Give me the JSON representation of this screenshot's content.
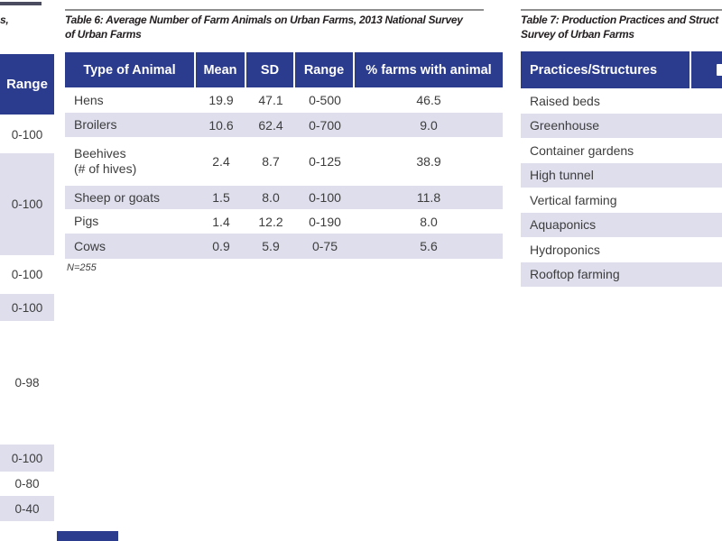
{
  "colors": {
    "header_navy": "#2b3b8e",
    "row_stripe": "#dedeed",
    "rule_gray": "#8f8f8f",
    "title_text": "#242021",
    "body_text": "#3d3d3d",
    "header_text": "#ffffff"
  },
  "left_table": {
    "title_fragment": "s,",
    "range_header": "Range",
    "range_values": [
      "0-100",
      "0-100",
      "0-100",
      "0-100",
      "0-98",
      "0-100",
      "0-80",
      "0-40"
    ]
  },
  "table6": {
    "title_line1": "Table 6: Average Number of Farm Animals on Urban Farms, 2013 National Survey",
    "title_line2": "of Urban Farms",
    "columns": [
      "Type of Animal",
      "Mean",
      "SD",
      "Range",
      "% farms with animal"
    ],
    "rows": [
      {
        "animal": "Hens",
        "animal2": "",
        "mean": "19.9",
        "sd": "47.1",
        "range": "0-500",
        "pct": "46.5"
      },
      {
        "animal": "Broilers",
        "animal2": "",
        "mean": "10.6",
        "sd": "62.4",
        "range": "0-700",
        "pct": "9.0"
      },
      {
        "animal": "Beehives",
        "animal2": "(# of hives)",
        "mean": "2.4",
        "sd": "8.7",
        "range": "0-125",
        "pct": "38.9"
      },
      {
        "animal": "Sheep or goats",
        "animal2": "",
        "mean": "1.5",
        "sd": "8.0",
        "range": "0-100",
        "pct": "11.8"
      },
      {
        "animal": "Pigs",
        "animal2": "",
        "mean": "1.4",
        "sd": "12.2",
        "range": "0-190",
        "pct": "8.0"
      },
      {
        "animal": "Cows",
        "animal2": "",
        "mean": "0.9",
        "sd": "5.9",
        "range": "0-75",
        "pct": "5.6"
      }
    ],
    "note": "N=255"
  },
  "table7": {
    "title_line1": "Table 7: Production Practices and Struct",
    "title_line2": "Survey of Urban Farms",
    "column_header": "Practices/Structures",
    "rows": [
      "Raised beds",
      "Greenhouse",
      "Container gardens",
      "High tunnel",
      "Vertical farming",
      "Aquaponics",
      "Hydroponics",
      "Rooftop farming"
    ]
  }
}
